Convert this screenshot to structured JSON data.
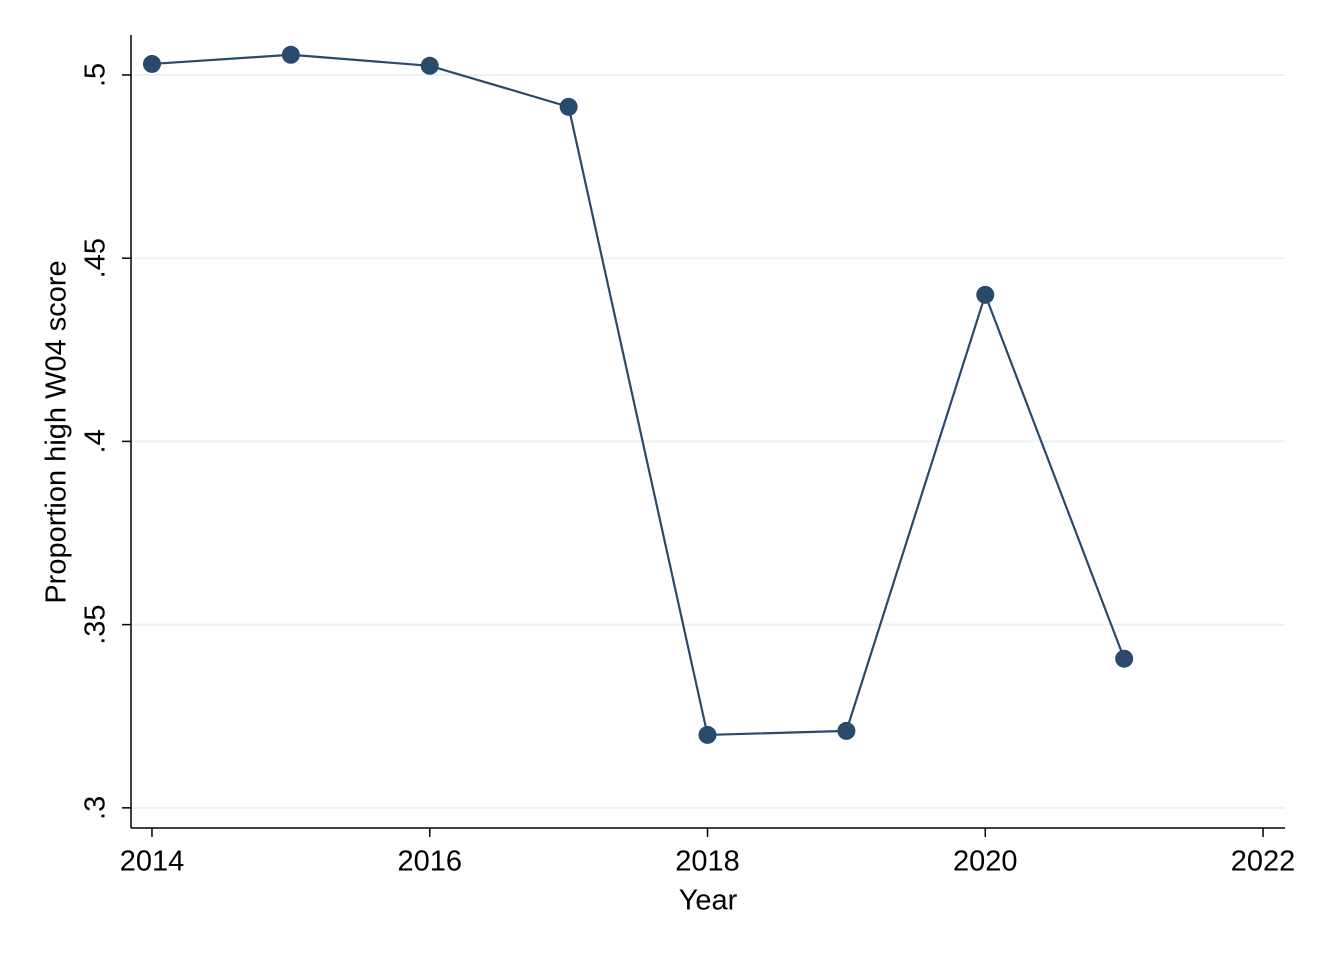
{
  "chart_data": {
    "type": "line",
    "x_label": "Year",
    "y_label": "Proportion high W04 score",
    "x": [
      2014,
      2015,
      2016,
      2017,
      2018,
      2019,
      2020,
      2021
    ],
    "series": [
      {
        "name": "Proportion high W04 score",
        "color": "#2a4a6b",
        "values": [
          0.503,
          0.5055,
          0.5025,
          0.4913,
          0.3199,
          0.321,
          0.44,
          0.3407
        ]
      }
    ],
    "xlim": [
      2013.849,
      2022.158
    ],
    "ylim": [
      0.2945,
      0.5109
    ],
    "xticks": [
      2014,
      2016,
      2018,
      2020,
      2022
    ],
    "yticks": [
      {
        "value": 0.3,
        "label": ".3"
      },
      {
        "value": 0.35,
        "label": ".35"
      },
      {
        "value": 0.4,
        "label": ".4"
      },
      {
        "value": 0.45,
        "label": ".45"
      },
      {
        "value": 0.5,
        "label": ".5"
      }
    ],
    "grid": true
  }
}
